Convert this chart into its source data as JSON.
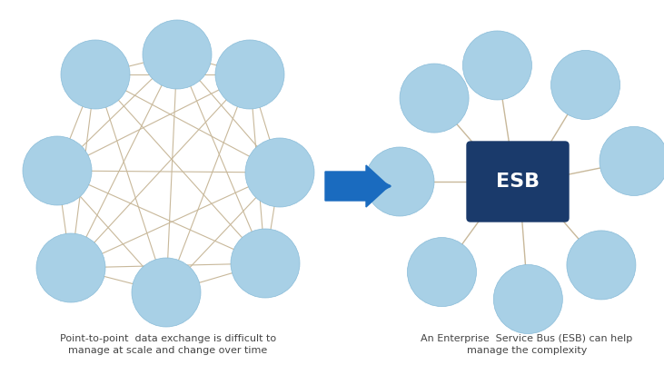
{
  "background_color": "#ffffff",
  "node_color": "#a8d0e6",
  "node_edge_color": "#88bbd8",
  "line_color": "#c8b89a",
  "esb_color": "#1a3a6b",
  "esb_text_color": "#ffffff",
  "arrow_color": "#1a6bbf",
  "text_color": "#444444",
  "left_caption": "Point-to-point  data exchange is difficult to\nmanage at scale and change over time",
  "right_caption": "An Enterprise  Service Bus (ESB) can help\nmanage the complexity",
  "esb_label": "ESB",
  "figsize": [
    7.31,
    4.13
  ],
  "dpi": 100
}
